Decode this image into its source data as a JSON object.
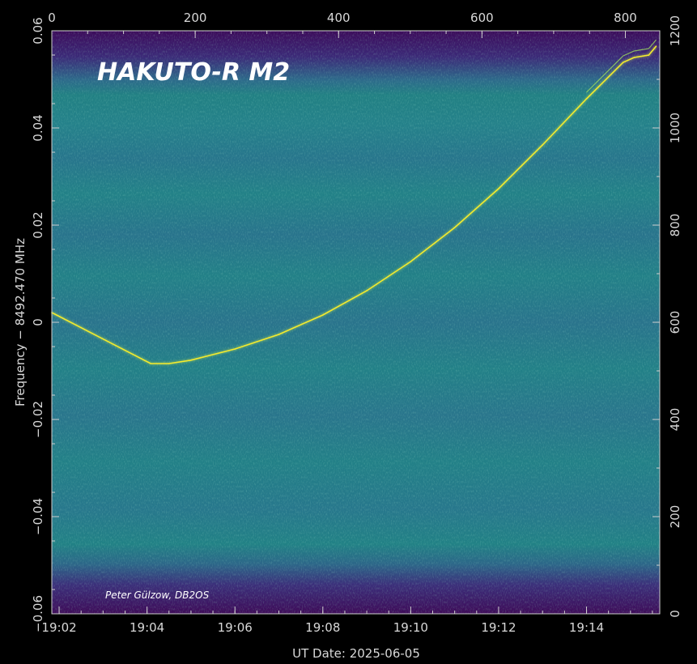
{
  "chart_data": {
    "type": "heatmap",
    "title": "HAKUTO-R M2",
    "credit": "Peter Gülzow, DB2OS",
    "xlabel": "UT Date: 2025-06-05",
    "ylabel": "Frequency − 8492.470 MHz",
    "x_ticks": [
      "19:02",
      "19:04",
      "19:06",
      "19:08",
      "19:10",
      "19:12",
      "19:14"
    ],
    "top_ticks": [
      "0",
      "200",
      "400",
      "600",
      "800"
    ],
    "y_ticks": [
      "−0.06",
      "−0.04",
      "−0.02",
      "0",
      "0.02",
      "0.04",
      "0.06"
    ],
    "right_ticks": [
      "0",
      "200",
      "400",
      "600",
      "800",
      "1000",
      "1200"
    ],
    "x_time_range": [
      "19:01:50",
      "19:15:40"
    ],
    "top_axis_range": [
      0,
      848
    ],
    "ylim": [
      -0.06,
      0.06
    ],
    "right_axis_range": [
      0,
      1200
    ],
    "colormap": [
      "#440154",
      "#3b528b",
      "#21918c",
      "#5ec962",
      "#fde725"
    ],
    "series": [
      {
        "x": [
          "19:01:50",
          "19:04:05",
          "19:04:30",
          "19:05:00",
          "19:06:00",
          "19:07:00",
          "19:08:00",
          "19:09:00",
          "19:10:00",
          "19:11:00",
          "19:12:00",
          "19:13:00",
          "19:14:00",
          "19:14:50",
          "19:15:05",
          "19:15:25",
          "19:15:35"
        ],
        "y": [
          0.002,
          -0.0085,
          -0.0085,
          -0.0078,
          -0.0055,
          -0.0025,
          0.0015,
          0.0065,
          0.0125,
          0.0195,
          0.0275,
          0.0365,
          0.046,
          0.0535,
          0.0545,
          0.055,
          0.0568
        ]
      }
    ]
  }
}
